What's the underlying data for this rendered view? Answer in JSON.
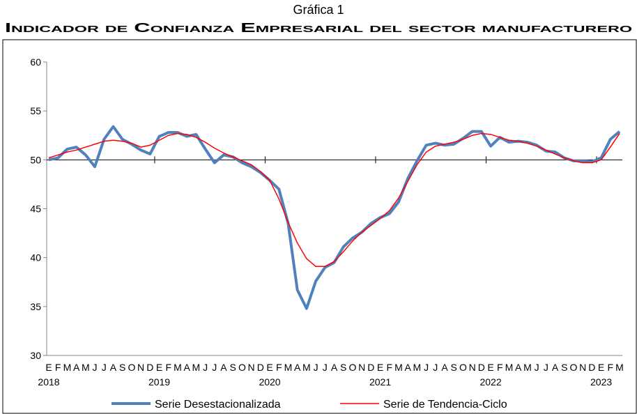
{
  "chart_data": {
    "type": "line",
    "supertitle": "Gráfica 1",
    "title": "Indicador de Confianza Empresarial del sector manufacturero",
    "categories": [
      "E",
      "F",
      "M",
      "A",
      "M",
      "J",
      "J",
      "A",
      "S",
      "O",
      "N",
      "D",
      "E",
      "F",
      "M",
      "A",
      "M",
      "J",
      "J",
      "A",
      "S",
      "O",
      "N",
      "D",
      "E",
      "F",
      "M",
      "A",
      "M",
      "J",
      "J",
      "A",
      "S",
      "O",
      "N",
      "D",
      "E",
      "F",
      "M",
      "A",
      "M",
      "J",
      "J",
      "A",
      "S",
      "O",
      "N",
      "D",
      "E",
      "F",
      "M",
      "A",
      "M",
      "J",
      "J",
      "A",
      "S",
      "O",
      "N",
      "D",
      "E",
      "F",
      "M"
    ],
    "years": [
      "2018",
      "2019",
      "2020",
      "2021",
      "2022",
      "2023"
    ],
    "series": [
      {
        "name": "Serie Desestacionalizada",
        "color": "#4f81bd",
        "width": 4,
        "values": [
          50.0,
          50.2,
          51.1,
          51.3,
          50.5,
          49.3,
          52.1,
          53.4,
          52.1,
          51.6,
          51.0,
          50.6,
          52.4,
          52.8,
          52.8,
          52.4,
          52.6,
          51.1,
          49.7,
          50.5,
          50.3,
          49.7,
          49.3,
          48.7,
          47.9,
          47.0,
          43.5,
          36.7,
          34.8,
          37.6,
          39.0,
          39.5,
          41.1,
          42.0,
          42.6,
          43.5,
          44.1,
          44.5,
          45.7,
          48.1,
          49.9,
          51.5,
          51.7,
          51.5,
          51.6,
          52.2,
          52.9,
          52.9,
          51.4,
          52.3,
          51.8,
          51.9,
          51.8,
          51.5,
          50.9,
          50.8,
          50.2,
          49.9,
          49.9,
          49.8,
          50.2,
          52.1,
          52.9
        ]
      },
      {
        "name": "Serie de Tendencia-Ciclo",
        "color": "#ff0000",
        "width": 1.5,
        "values": [
          50.2,
          50.5,
          50.8,
          51.0,
          51.3,
          51.6,
          51.9,
          52.0,
          51.9,
          51.7,
          51.3,
          51.5,
          52.0,
          52.5,
          52.7,
          52.6,
          52.3,
          51.8,
          51.2,
          50.7,
          50.3,
          49.9,
          49.5,
          48.8,
          47.9,
          46.0,
          43.6,
          41.5,
          39.9,
          39.1,
          39.1,
          39.6,
          40.6,
          41.7,
          42.6,
          43.3,
          44.0,
          44.8,
          46.1,
          47.8,
          49.5,
          50.8,
          51.4,
          51.6,
          51.8,
          52.1,
          52.5,
          52.7,
          52.6,
          52.3,
          52.0,
          51.9,
          51.7,
          51.4,
          51.0,
          50.6,
          50.2,
          49.9,
          49.7,
          49.7,
          50.0,
          51.3,
          52.7
        ]
      }
    ],
    "ylim": [
      30,
      60
    ],
    "yticks": [
      30,
      35,
      40,
      45,
      50,
      55,
      60
    ],
    "reference_line": 50
  }
}
